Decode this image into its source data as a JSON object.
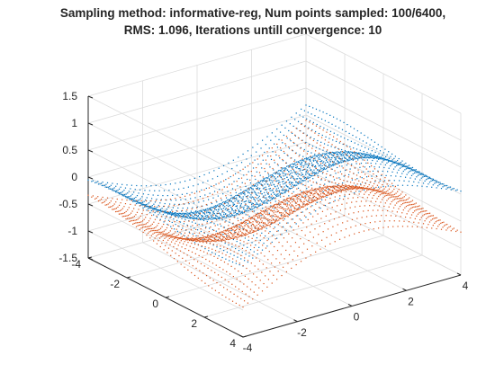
{
  "figure": {
    "title_line1": "Sampling method: informative-reg, Num points sampled: 100/6400,",
    "title_line2": "RMS: 1.096, Iterations untill convergence: 10"
  },
  "chart_data": {
    "type": "scatter",
    "title": "Sampling method: informative-reg, Num points sampled: 100/6400, RMS: 1.096, Iterations untill convergence: 10",
    "xlabel": "",
    "ylabel": "",
    "zlabel": "",
    "view": "3d",
    "grid": true,
    "xlim": [
      -4,
      4
    ],
    "ylim": [
      -4,
      4
    ],
    "zlim": [
      -1.5,
      1.5
    ],
    "x_ticks": [
      "-4",
      "-2",
      "0",
      "2",
      "4"
    ],
    "y_ticks": [
      "-4",
      "-2",
      "0",
      "2",
      "4"
    ],
    "z_ticks": [
      "-1.5",
      "-1",
      "-0.5",
      "0",
      "0.5",
      "1",
      "1.5"
    ],
    "surface": "z ≈ sin(x)·cos(y) style saddle sampled on a grid",
    "grid_points": 6400,
    "series": [
      {
        "color": "#0072BD",
        "marker": "dot",
        "z_range": [
          -1.0,
          1.05
        ]
      },
      {
        "color": "#D95319",
        "marker": "dot",
        "z_range": [
          -1.45,
          0.95
        ]
      }
    ]
  }
}
